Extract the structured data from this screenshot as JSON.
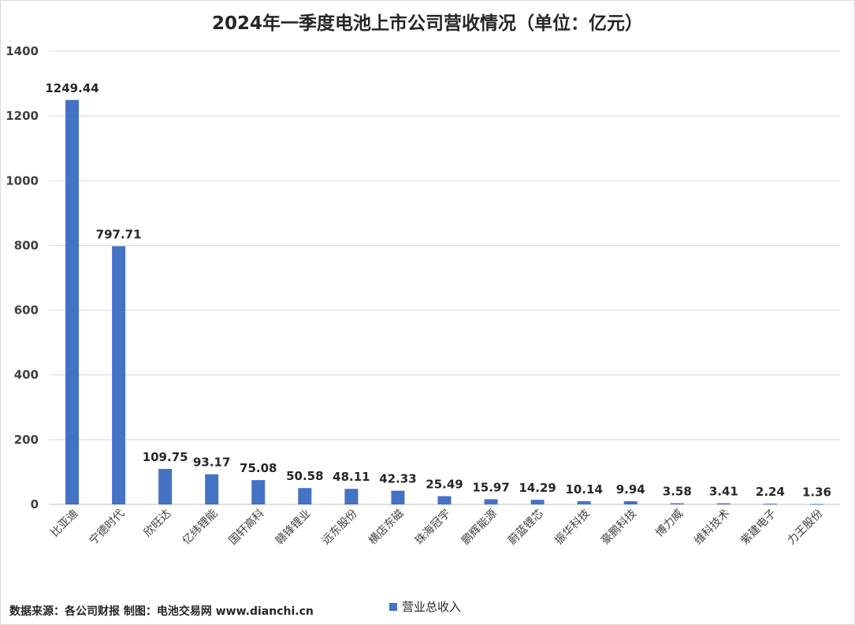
{
  "chart_data": {
    "type": "bar",
    "title": "2024年一季度电池上市公司营收情况（单位：亿元）",
    "categories": [
      "比亚迪",
      "宁德时代",
      "欣旺达",
      "亿纬锂能",
      "国轩高科",
      "赣锋锂业",
      "远东股份",
      "横店东磁",
      "珠海冠宇",
      "鹏辉能源",
      "蔚蓝锂芯",
      "振华科技",
      "豪鹏科技",
      "博力威",
      "维科技术",
      "紫建电子",
      "力王股份"
    ],
    "series": [
      {
        "name": "营业总收入",
        "values": [
          1249.44,
          797.71,
          109.75,
          93.17,
          75.08,
          50.58,
          48.11,
          42.33,
          25.49,
          15.97,
          14.29,
          10.14,
          9.94,
          3.58,
          3.41,
          2.24,
          1.36
        ],
        "data_labels": [
          "1249.44",
          "797.71",
          "109.75",
          "93.17",
          "75.08",
          "50.58",
          "48.11",
          "42.33",
          "25.49",
          "15.97",
          "14.29",
          "10.14",
          "9.94",
          "3.58",
          "3.41",
          "2.24",
          "1.36"
        ]
      }
    ],
    "ylim": [
      0,
      1400
    ],
    "yticks": [
      0,
      200,
      400,
      600,
      800,
      1000,
      1200,
      1400
    ],
    "grid": true,
    "legend": "bottom",
    "color": "#4472c4"
  },
  "source_note": "数据来源：各公司财报  制图：电池交易网 www.dianchi.cn"
}
